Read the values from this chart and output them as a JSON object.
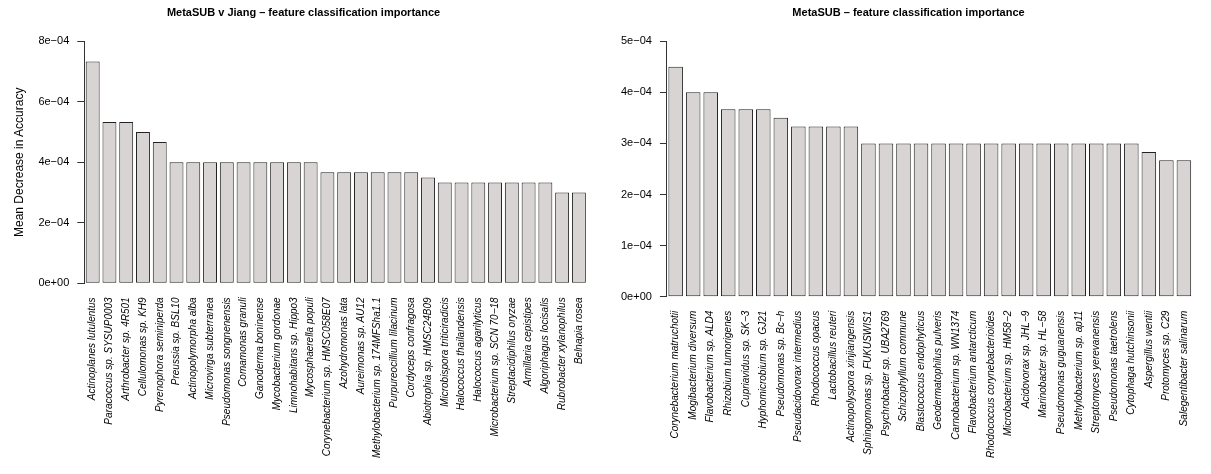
{
  "chart_data": [
    {
      "type": "bar",
      "title": "MetaSUB v Jiang – feature classification importance",
      "ylabel": "Mean Decrease in Accuracy",
      "categories": [
        "Actinoplanes lutulentus",
        "Paracoccus sp. SYSUP0003",
        "Arthrobacter sp. 4R501",
        "Cellulomonas sp. KH9",
        "Pyrenophora seminiperda",
        "Preussia sp. BSL10",
        "Actinopolymorpha alba",
        "Microvirga subterranea",
        "Pseudomonas songnenensis",
        "Comamonas granuli",
        "Ganoderma boninense",
        "Mycobacterium gordonae",
        "Limnohabitans sp. Hippo3",
        "Mycosphaerella populi",
        "Corynebacterium sp. HMSC058E07",
        "Azohydromonas lata",
        "Aureimonas sp. AU12",
        "Methylobacterium sp. 174MFSha1.1",
        "Purpureocillium lilacinum",
        "Cordyceps confragosa",
        "Abiotrophia sp. HMSC24B09",
        "Microbispora triticiradicis",
        "Halococcus thailandensis",
        "Halococcus agarilyticus",
        "Microbacterium sp. SCN 70−18",
        "Streptacidiphilus oryzae",
        "Armillaria cepistipes",
        "Algoriphagus locisalis",
        "Rubrobacter xylanophilus",
        "Belnapia rosea"
      ],
      "values": [
        0.000733,
        0.000533,
        0.000533,
        0.0005,
        0.000467,
        0.0004,
        0.0004,
        0.0004,
        0.0004,
        0.0004,
        0.0004,
        0.0004,
        0.0004,
        0.0004,
        0.000367,
        0.000367,
        0.000367,
        0.000367,
        0.000367,
        0.000367,
        0.00035,
        0.000333,
        0.000333,
        0.000333,
        0.000333,
        0.000333,
        0.000333,
        0.000333,
        0.0003,
        0.0003
      ],
      "color": "#d9d4d4",
      "ylim": [
        0,
        0.0008
      ],
      "yticks": [
        {
          "value": 0,
          "label": "0e+00"
        },
        {
          "value": 0.0002,
          "label": "2e−04"
        },
        {
          "value": 0.0004,
          "label": "4e−04"
        },
        {
          "value": 0.0006,
          "label": "6e−04"
        },
        {
          "value": 0.0008,
          "label": "8e−04"
        }
      ],
      "grid": false,
      "legend": false
    },
    {
      "type": "bar",
      "title": "MetaSUB – feature classification importance",
      "categories": [
        "Corynebacterium matruchotii",
        "Mogibacterium diversum",
        "Flavobacterium sp. ALD4",
        "Rhizobium tumorigenes",
        "Cupriavidus sp. SK−3",
        "Hyphomicrobium sp. GJ21",
        "Pseudomonas sp. Bc−h",
        "Pseudacidovorax intermedius",
        "Rhodococcus opacus",
        "Lactobacillus reuteri",
        "Actinopolyspora xinjiangensis",
        "Sphingomonas sp. FUKUSWIS1",
        "Psychrobacter sp. UBA2769",
        "Schizophyllum commune",
        "Blastococcus endophyticus",
        "Geodermatophilus pulveris",
        "Carnobacterium sp. WN1374",
        "Flavobacterium antarcticum",
        "Rhodococcus corynebacterioides",
        "Microbacterium sp. HM58−2",
        "Acidovorax sp. JHL−9",
        "Marinobacter sp. HL−58",
        "Pseudomonas guguanensis",
        "Methylobacterium sp. ap11",
        "Streptomyces yerevanensis",
        "Pseudomonas taetrolens",
        "Cytophaga hutchinsonii",
        "Aspergillus wentii",
        "Protomyces sp. C29",
        "Salegentibacter salinarum"
      ],
      "values": [
        0.00045,
        0.0004,
        0.0004,
        0.000367,
        0.000367,
        0.000367,
        0.00035,
        0.000333,
        0.000333,
        0.000333,
        0.000333,
        0.0003,
        0.0003,
        0.0003,
        0.0003,
        0.0003,
        0.0003,
        0.0003,
        0.0003,
        0.0003,
        0.0003,
        0.0003,
        0.0003,
        0.0003,
        0.0003,
        0.0003,
        0.0003,
        0.000283,
        0.000267,
        0.000267
      ],
      "color": "#d9d4d4",
      "ylim": [
        0,
        0.0005
      ],
      "yticks": [
        {
          "value": 0,
          "label": "0e+00"
        },
        {
          "value": 0.0001,
          "label": "1e−04"
        },
        {
          "value": 0.0002,
          "label": "2e−04"
        },
        {
          "value": 0.0003,
          "label": "3e−04"
        },
        {
          "value": 0.0004,
          "label": "4e−04"
        },
        {
          "value": 0.0005,
          "label": "5e−04"
        }
      ],
      "grid": false,
      "legend": false
    }
  ]
}
